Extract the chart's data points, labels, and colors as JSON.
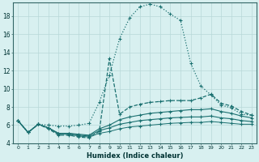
{
  "xlabel": "Humidex (Indice chaleur)",
  "bg_color": "#d8f0f0",
  "line_color": "#1a7070",
  "grid_color": "#b8d8d8",
  "xlim": [
    -0.5,
    23.5
  ],
  "ylim": [
    4,
    19.5
  ],
  "xticks": [
    0,
    1,
    2,
    3,
    4,
    5,
    6,
    7,
    8,
    9,
    10,
    11,
    12,
    13,
    14,
    15,
    16,
    17,
    18,
    19,
    20,
    21,
    22,
    23
  ],
  "yticks": [
    4,
    6,
    8,
    10,
    12,
    14,
    16,
    18
  ],
  "series": [
    {
      "x": [
        0,
        1,
        2,
        3,
        4,
        5,
        6,
        7,
        8,
        9,
        10,
        11,
        12,
        13,
        14,
        15,
        16,
        17,
        18,
        19,
        20,
        21,
        22,
        23
      ],
      "y": [
        6.5,
        5.2,
        6.1,
        6.0,
        5.9,
        5.9,
        6.0,
        6.2,
        8.5,
        11.5,
        15.5,
        17.8,
        19.0,
        19.3,
        19.0,
        18.2,
        17.5,
        12.8,
        10.3,
        9.3,
        8.2,
        7.9,
        7.2,
        7.1
      ],
      "linestyle": "dotted",
      "marker": "+",
      "markersize": 3.5,
      "linewidth": 0.9
    },
    {
      "x": [
        0,
        1,
        2,
        3,
        4,
        5,
        6,
        7,
        8,
        9,
        10,
        11,
        12,
        13,
        14,
        15,
        16,
        17,
        18,
        19,
        20,
        21,
        22,
        23
      ],
      "y": [
        6.5,
        5.2,
        6.1,
        5.6,
        4.9,
        4.9,
        4.7,
        4.6,
        5.3,
        13.3,
        7.2,
        8.0,
        8.3,
        8.5,
        8.6,
        8.7,
        8.7,
        8.7,
        9.0,
        9.4,
        8.4,
        8.1,
        7.5,
        7.1
      ],
      "linestyle": "dashed",
      "marker": "+",
      "markersize": 3.5,
      "linewidth": 0.9
    },
    {
      "x": [
        0,
        1,
        2,
        3,
        4,
        5,
        6,
        7,
        8,
        9,
        10,
        11,
        12,
        13,
        14,
        15,
        16,
        17,
        18,
        19,
        20,
        21,
        22,
        23
      ],
      "y": [
        6.5,
        5.2,
        6.1,
        5.7,
        5.1,
        5.1,
        5.0,
        4.9,
        5.6,
        6.0,
        6.6,
        6.9,
        7.1,
        7.3,
        7.4,
        7.5,
        7.6,
        7.7,
        7.7,
        7.8,
        7.5,
        7.3,
        7.0,
        6.8
      ],
      "linestyle": "solid",
      "marker": "+",
      "markersize": 3.0,
      "linewidth": 0.8
    },
    {
      "x": [
        0,
        1,
        2,
        3,
        4,
        5,
        6,
        7,
        8,
        9,
        10,
        11,
        12,
        13,
        14,
        15,
        16,
        17,
        18,
        19,
        20,
        21,
        22,
        23
      ],
      "y": [
        6.5,
        5.2,
        6.1,
        5.7,
        5.1,
        5.1,
        4.9,
        4.8,
        5.4,
        5.7,
        6.1,
        6.3,
        6.5,
        6.6,
        6.7,
        6.8,
        6.85,
        6.9,
        6.9,
        7.0,
        6.8,
        6.7,
        6.5,
        6.4
      ],
      "linestyle": "solid",
      "marker": "+",
      "markersize": 3.0,
      "linewidth": 0.8
    },
    {
      "x": [
        0,
        1,
        2,
        3,
        4,
        5,
        6,
        7,
        8,
        9,
        10,
        11,
        12,
        13,
        14,
        15,
        16,
        17,
        18,
        19,
        20,
        21,
        22,
        23
      ],
      "y": [
        6.5,
        5.2,
        6.1,
        5.7,
        5.0,
        5.0,
        4.8,
        4.7,
        5.1,
        5.3,
        5.6,
        5.8,
        5.9,
        6.0,
        6.1,
        6.2,
        6.25,
        6.3,
        6.3,
        6.4,
        6.3,
        6.2,
        6.1,
        6.1
      ],
      "linestyle": "solid",
      "marker": "+",
      "markersize": 2.5,
      "linewidth": 0.7
    }
  ]
}
